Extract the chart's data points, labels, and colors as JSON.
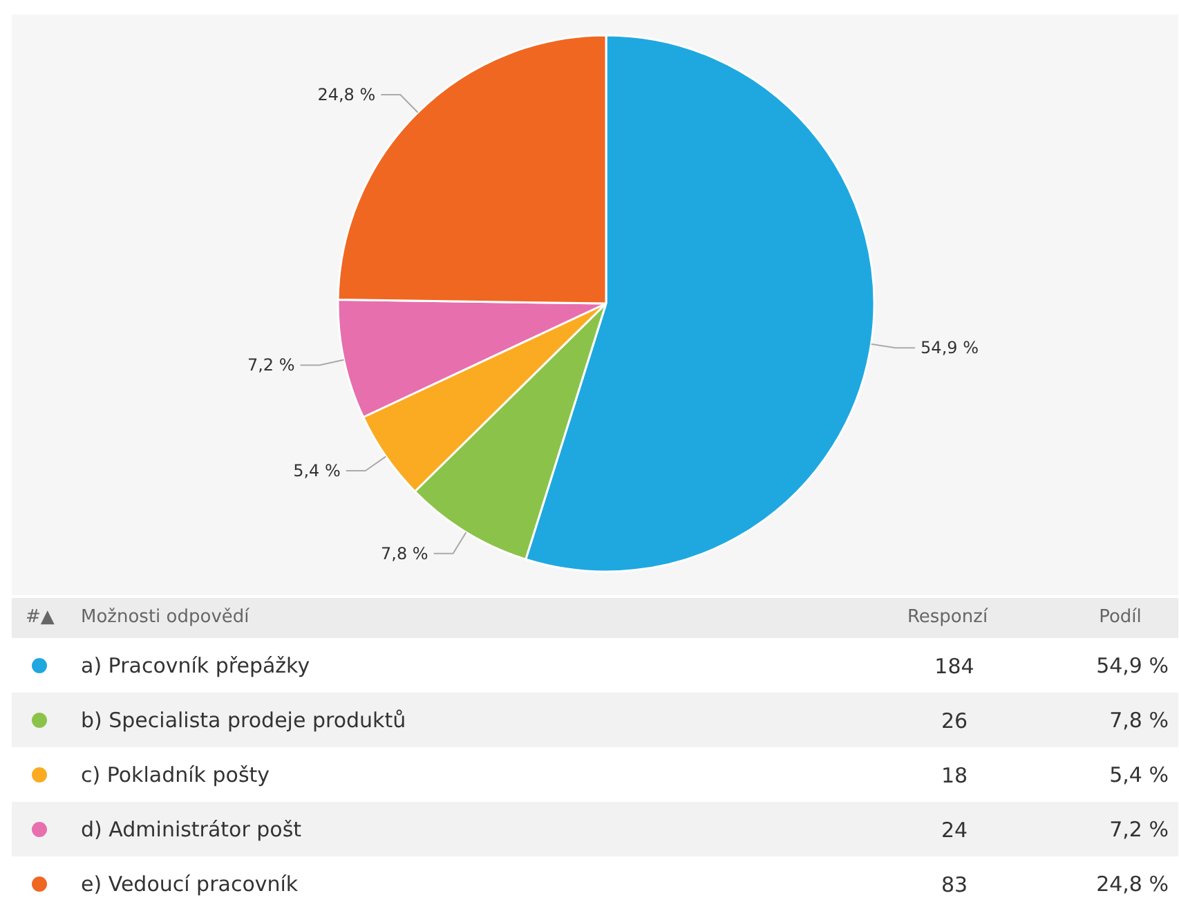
{
  "chart_data": {
    "type": "pie",
    "categories": [
      "a) Pracovník přepážky",
      "b) Specialista prodeje produktů",
      "c) Pokladník pošty",
      "d) Administrátor pošt",
      "e) Vedoucí pracovník"
    ],
    "values": [
      54.9,
      7.8,
      5.4,
      7.2,
      24.8
    ],
    "value_labels": [
      "54,9 %",
      "7,8 %",
      "5,4 %",
      "7,2 %",
      "24,8 %"
    ],
    "colors": [
      "#1fa8e0",
      "#8bc34a",
      "#fbab22",
      "#e76fae",
      "#f06722"
    ],
    "legend": "bottom",
    "annotations": [
      "#▲",
      "Možnosti odpovědí",
      "Responzí",
      "Podíl",
      "184",
      "26",
      "18",
      "24",
      "83"
    ]
  }
}
